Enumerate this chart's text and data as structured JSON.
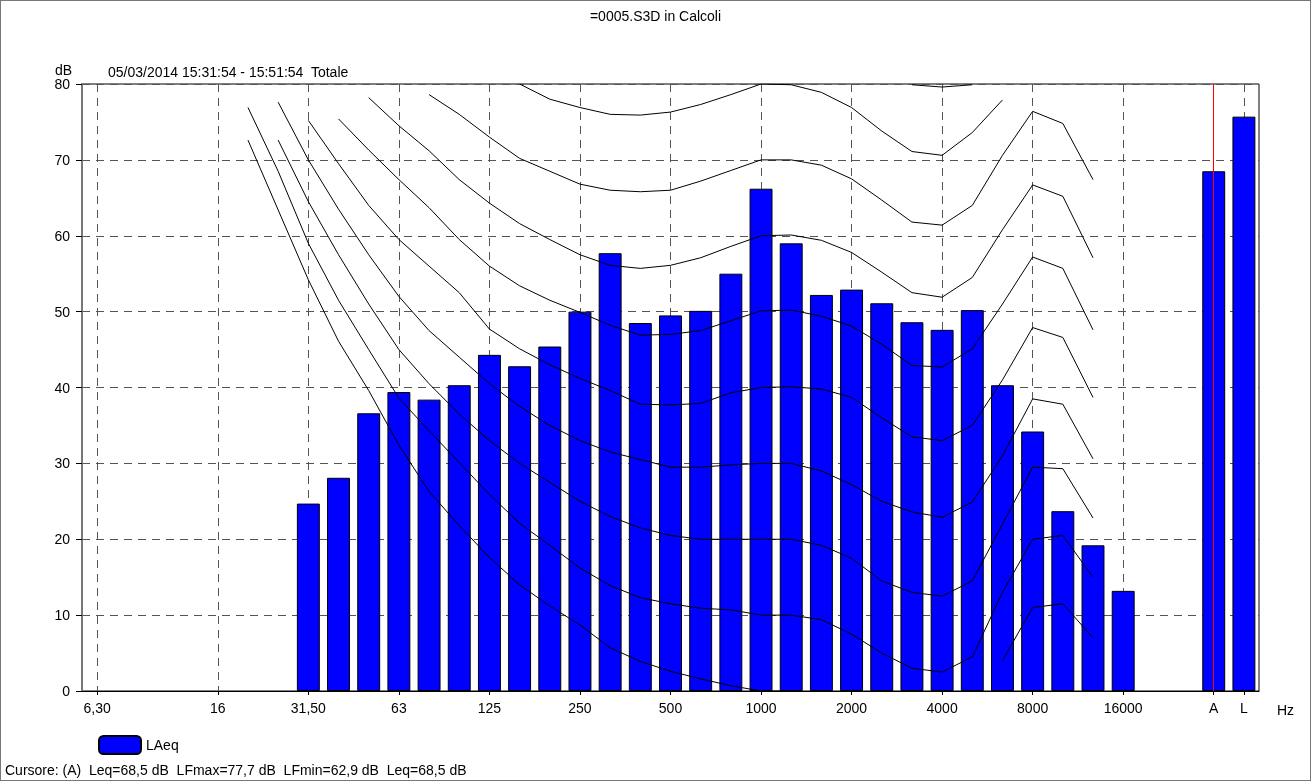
{
  "chart_data": {
    "type": "bar",
    "title": "=0005.S3D in Calcoli",
    "subtitle": "05/03/2014 15:31:54 - 15:51:54  Totale",
    "xlabel": "Hz",
    "ylabel": "dB",
    "annotations": [
      "Cursore: (A)  Leq=68,5 dB  LFmax=77,7 dB  LFmin=62,9 dB  Leq=68,5 dB"
    ],
    "categories": [
      "6,30",
      null,
      null,
      null,
      "16",
      null,
      null,
      "31,50",
      null,
      null,
      "63",
      null,
      null,
      "125",
      null,
      null,
      "250",
      null,
      null,
      "500",
      null,
      null,
      "1000",
      null,
      null,
      "2000",
      null,
      null,
      "4000",
      null,
      null,
      "8000",
      null,
      null,
      "16000",
      null,
      null,
      "A",
      "L"
    ],
    "ylim": [
      0,
      80
    ],
    "yticks": [
      0,
      10,
      20,
      30,
      40,
      50,
      60,
      70,
      80
    ],
    "grid": true,
    "legend": "bottom left",
    "marker": "none",
    "ref_lines": [
      {
        "axis": "x",
        "value": "A",
        "color": "#ff0000"
      }
    ],
    "series": [
      {
        "name": "LAeq",
        "color": "#0000ff",
        "values": [
          null,
          null,
          null,
          null,
          null,
          null,
          null,
          24.7,
          28.1,
          36.6,
          39.4,
          38.4,
          40.3,
          44.3,
          42.8,
          45.4,
          50.0,
          57.7,
          48.5,
          49.5,
          50.1,
          55.0,
          66.2,
          59.0,
          52.2,
          52.9,
          51.1,
          48.6,
          47.6,
          50.2,
          40.3,
          34.2,
          23.7,
          19.2,
          13.2,
          null,
          null,
          68.5,
          75.7
        ]
      },
      {
        "type": "line",
        "color": "#000000",
        "values": [
          null,
          null,
          null,
          null,
          null,
          72.6,
          63.4,
          54.2,
          46.1,
          39.6,
          32.4,
          26.3,
          21.8,
          17.6,
          14.0,
          11.2,
          8.7,
          5.7,
          3.9,
          2.6,
          1.6,
          0.7,
          0.0,
          0.0,
          null,
          null,
          null,
          null,
          null,
          null,
          4.0,
          11.0,
          11.5,
          7.0,
          null,
          null,
          null,
          null,
          null
        ]
      },
      {
        "type": "line",
        "color": "#000000",
        "values": [
          null,
          null,
          null,
          null,
          null,
          76.9,
          68.5,
          59.0,
          51.5,
          45.0,
          38.6,
          34.3,
          30.1,
          25.9,
          22.1,
          19.2,
          16.2,
          13.9,
          12.3,
          11.5,
          10.9,
          10.7,
          10.0,
          10.0,
          9.4,
          7.5,
          5.0,
          3.0,
          2.5,
          4.5,
          13.0,
          20.0,
          20.5,
          15.0,
          null,
          null,
          null,
          null,
          null
        ]
      },
      {
        "type": "line",
        "color": "#000000",
        "values": [
          null,
          null,
          null,
          null,
          null,
          null,
          72.6,
          64.5,
          57.5,
          51.0,
          45.0,
          40.5,
          36.5,
          33.0,
          30.0,
          27.5,
          25.0,
          23.0,
          21.5,
          20.5,
          20.0,
          20.0,
          20.0,
          20.0,
          19.2,
          17.5,
          14.5,
          13.0,
          12.5,
          14.5,
          22.0,
          29.5,
          29.3,
          22.8,
          null,
          null,
          null,
          null,
          null
        ]
      },
      {
        "type": "line",
        "color": "#000000",
        "values": [
          null,
          null,
          null,
          null,
          null,
          null,
          77.6,
          70.0,
          63.5,
          57.5,
          52.0,
          47.5,
          44.0,
          40.5,
          37.5,
          35.0,
          33.0,
          31.5,
          30.5,
          29.5,
          29.5,
          29.8,
          30.0,
          30.0,
          29.0,
          27.2,
          25.0,
          23.6,
          22.9,
          24.9,
          31.0,
          38.5,
          37.8,
          30.6,
          null,
          null,
          null,
          null,
          null
        ]
      },
      {
        "type": "line",
        "color": "#000000",
        "values": [
          null,
          null,
          null,
          null,
          null,
          null,
          null,
          75.2,
          69.5,
          64.0,
          59.5,
          56.0,
          52.5,
          47.7,
          45.1,
          43.0,
          41.2,
          39.6,
          37.8,
          37.7,
          37.9,
          39.3,
          40.0,
          40.1,
          39.8,
          38.7,
          36.0,
          33.5,
          33.0,
          35.0,
          41.0,
          47.9,
          46.6,
          38.7,
          null,
          null,
          null,
          null,
          null
        ]
      },
      {
        "type": "line",
        "color": "#000000",
        "values": [
          null,
          null,
          null,
          null,
          null,
          null,
          null,
          null,
          75.4,
          71.3,
          67.4,
          63.7,
          59.5,
          56.0,
          53.4,
          51.5,
          49.9,
          48.2,
          46.9,
          47.0,
          47.5,
          48.8,
          50.1,
          50.2,
          49.4,
          48.1,
          45.7,
          42.9,
          42.7,
          45.1,
          51.0,
          57.2,
          55.7,
          47.6,
          null,
          null,
          null,
          null,
          null
        ]
      },
      {
        "type": "line",
        "color": "#000000",
        "values": [
          null,
          null,
          null,
          null,
          null,
          null,
          null,
          null,
          null,
          78.2,
          74.5,
          71.2,
          67.4,
          64.3,
          61.6,
          59.5,
          57.5,
          56.1,
          55.7,
          56.1,
          57.1,
          58.6,
          60.0,
          60.1,
          59.4,
          57.8,
          55.2,
          52.5,
          51.9,
          54.5,
          60.8,
          66.7,
          65.2,
          57.1,
          null,
          null,
          null,
          null,
          null
        ]
      },
      {
        "type": "line",
        "color": "#000000",
        "values": [
          null,
          null,
          null,
          null,
          null,
          null,
          null,
          null,
          null,
          null,
          null,
          78.6,
          76.0,
          73.0,
          70.2,
          68.5,
          66.8,
          66.0,
          65.8,
          66.0,
          67.2,
          68.6,
          70.0,
          70.0,
          69.3,
          67.5,
          64.7,
          61.8,
          61.4,
          64.0,
          70.6,
          76.4,
          74.8,
          67.4,
          null,
          null,
          null,
          null,
          null
        ]
      },
      {
        "type": "line",
        "color": "#000000",
        "values": [
          null,
          null,
          null,
          null,
          null,
          null,
          null,
          null,
          null,
          null,
          null,
          null,
          null,
          null,
          80.0,
          78.0,
          76.9,
          76.0,
          75.9,
          76.3,
          77.3,
          78.6,
          80.0,
          79.9,
          78.9,
          76.9,
          73.8,
          71.1,
          70.6,
          73.6,
          77.9,
          null,
          null,
          null,
          null,
          null,
          null,
          null,
          null
        ]
      },
      {
        "type": "line",
        "color": "#000000",
        "values": [
          null,
          null,
          null,
          null,
          null,
          null,
          null,
          null,
          null,
          null,
          null,
          null,
          null,
          null,
          null,
          null,
          null,
          null,
          null,
          null,
          null,
          null,
          null,
          null,
          null,
          null,
          null,
          79.9,
          79.6,
          79.9,
          null,
          null,
          null,
          null,
          null,
          null,
          null,
          null,
          null
        ]
      }
    ]
  }
}
